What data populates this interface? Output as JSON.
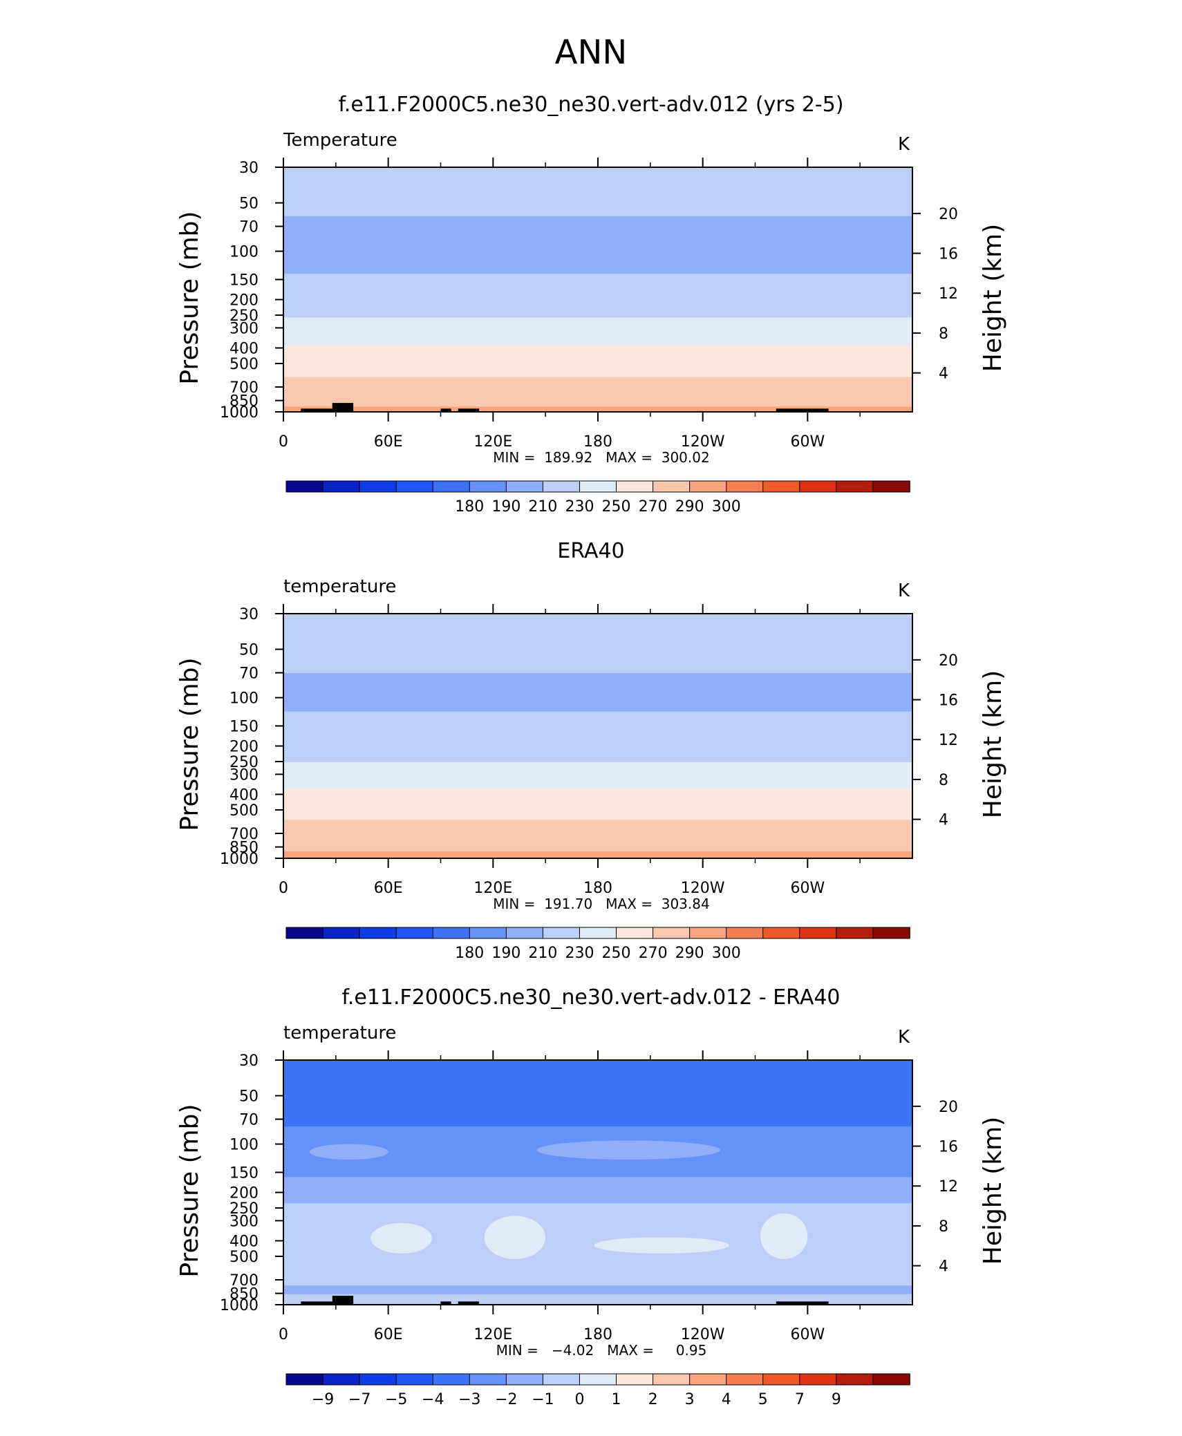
{
  "page_title": "ANN",
  "chart_data": [
    {
      "type": "heatmap",
      "title": "f.e11.F2000C5.ne30_ne30.vert-adv.012 (yrs 2-5)",
      "left_label": "Temperature",
      "units": "K",
      "ylabel": "Pressure (mb)",
      "y2label": "Height (km)",
      "xlabel": "",
      "x_ticks": [
        "0",
        "60E",
        "120E",
        "180",
        "120W",
        "60W"
      ],
      "y_ticks": [
        "30",
        "50",
        "70",
        "100",
        "150",
        "200",
        "250",
        "300",
        "400",
        "500",
        "700",
        "850",
        "1000"
      ],
      "y2_ticks": [
        "20",
        "16",
        "12",
        "8",
        "4"
      ],
      "y_scale": "log",
      "ylim": [
        1000,
        30
      ],
      "xlim": [
        0,
        360
      ],
      "min_max_text": "MIN =  189.92   MAX =  300.02",
      "min": 189.92,
      "max": 300.02,
      "colorbar": {
        "labels": [
          "180",
          "190",
          "210",
          "230",
          "250",
          "270",
          "290",
          "300"
        ],
        "colors": [
          "#08088c",
          "#0a24c8",
          "#0f3de6",
          "#1f56f5",
          "#3e72f7",
          "#6492f9",
          "#8fb0f9",
          "#bcd0f7",
          "#e1ebf8",
          "#fde9dc",
          "#fac8ae",
          "#f7a47f",
          "#f47e52",
          "#ef5a2b",
          "#de3414",
          "#b51d0c",
          "#8a0a06"
        ]
      },
      "profile": [
        {
          "p": 30,
          "value": 224
        },
        {
          "p": 40,
          "value": 219
        },
        {
          "p": 50,
          "value": 215
        },
        {
          "p": 70,
          "value": 206
        },
        {
          "p": 100,
          "value": 203
        },
        {
          "p": 150,
          "value": 212
        },
        {
          "p": 200,
          "value": 219
        },
        {
          "p": 250,
          "value": 228
        },
        {
          "p": 300,
          "value": 238
        },
        {
          "p": 400,
          "value": 252
        },
        {
          "p": 500,
          "value": 262
        },
        {
          "p": 700,
          "value": 276
        },
        {
          "p": 850,
          "value": 285
        },
        {
          "p": 1000,
          "value": 294
        }
      ]
    },
    {
      "type": "heatmap",
      "title": "ERA40",
      "left_label": "temperature",
      "units": "K",
      "ylabel": "Pressure (mb)",
      "y2label": "Height (km)",
      "xlabel": "",
      "x_ticks": [
        "0",
        "60E",
        "120E",
        "180",
        "120W",
        "60W"
      ],
      "y_ticks": [
        "30",
        "50",
        "70",
        "100",
        "150",
        "200",
        "250",
        "300",
        "400",
        "500",
        "700",
        "850",
        "1000"
      ],
      "y2_ticks": [
        "20",
        "16",
        "12",
        "8",
        "4"
      ],
      "y_scale": "log",
      "ylim": [
        1000,
        30
      ],
      "xlim": [
        0,
        360
      ],
      "min_max_text": "MIN =  191.70   MAX =  303.84",
      "min": 191.7,
      "max": 303.84,
      "colorbar": {
        "labels": [
          "180",
          "190",
          "210",
          "230",
          "250",
          "270",
          "290",
          "300"
        ],
        "colors": [
          "#08088c",
          "#0a24c8",
          "#0f3de6",
          "#1f56f5",
          "#3e72f7",
          "#6492f9",
          "#8fb0f9",
          "#bcd0f7",
          "#e1ebf8",
          "#fde9dc",
          "#fac8ae",
          "#f7a47f",
          "#f47e52",
          "#ef5a2b",
          "#de3414",
          "#b51d0c",
          "#8a0a06"
        ]
      },
      "profile": [
        {
          "p": 30,
          "value": 226
        },
        {
          "p": 40,
          "value": 222
        },
        {
          "p": 50,
          "value": 217
        },
        {
          "p": 70,
          "value": 210
        },
        {
          "p": 100,
          "value": 206
        },
        {
          "p": 150,
          "value": 214
        },
        {
          "p": 200,
          "value": 221
        },
        {
          "p": 250,
          "value": 230
        },
        {
          "p": 300,
          "value": 241
        },
        {
          "p": 400,
          "value": 254
        },
        {
          "p": 500,
          "value": 264
        },
        {
          "p": 700,
          "value": 278
        },
        {
          "p": 850,
          "value": 287
        },
        {
          "p": 1000,
          "value": 296
        }
      ]
    },
    {
      "type": "heatmap",
      "title": "f.e11.F2000C5.ne30_ne30.vert-adv.012 - ERA40",
      "left_label": "temperature",
      "units": "K",
      "ylabel": "Pressure (mb)",
      "y2label": "Height (km)",
      "xlabel": "",
      "x_ticks": [
        "0",
        "60E",
        "120E",
        "180",
        "120W",
        "60W"
      ],
      "y_ticks": [
        "30",
        "50",
        "70",
        "100",
        "150",
        "200",
        "250",
        "300",
        "400",
        "500",
        "700",
        "850",
        "1000"
      ],
      "y2_ticks": [
        "20",
        "16",
        "12",
        "8",
        "4"
      ],
      "y_scale": "log",
      "ylim": [
        1000,
        30
      ],
      "xlim": [
        0,
        360
      ],
      "min_max_text": "MIN =   −4.02   MAX =     0.95",
      "min": -4.02,
      "max": 0.95,
      "colorbar": {
        "labels": [
          "−9",
          "−7",
          "−5",
          "−4",
          "−3",
          "−2",
          "−1",
          "0",
          "1",
          "2",
          "3",
          "4",
          "5",
          "7",
          "9"
        ],
        "colors": [
          "#08088c",
          "#0a24c8",
          "#0f3de6",
          "#1f56f5",
          "#3e72f7",
          "#6492f9",
          "#8fb0f9",
          "#bcd0f7",
          "#e1ebf8",
          "#fde9dc",
          "#fac8ae",
          "#f7a47f",
          "#f47e52",
          "#ef5a2b",
          "#de3414",
          "#b51d0c",
          "#8a0a06"
        ]
      },
      "profile": [
        {
          "p": 30,
          "value": -3.5
        },
        {
          "p": 70,
          "value": -3.5
        },
        {
          "p": 85,
          "value": -2.5
        },
        {
          "p": 130,
          "value": -2.5
        },
        {
          "p": 200,
          "value": -1.5
        },
        {
          "p": 270,
          "value": -0.5
        },
        {
          "p": 700,
          "value": -0.5
        },
        {
          "p": 820,
          "value": -1.5
        },
        {
          "p": 900,
          "value": -0.5
        },
        {
          "p": 1000,
          "value": -0.5
        }
      ],
      "features": [
        {
          "kind": "positive",
          "value": 0.5,
          "lon": [
            50,
            85
          ],
          "p": [
            310,
            480
          ]
        },
        {
          "kind": "positive",
          "value": 0.5,
          "lon": [
            115,
            150
          ],
          "p": [
            280,
            520
          ]
        },
        {
          "kind": "positive",
          "value": 0.5,
          "lon": [
            178,
            255
          ],
          "p": [
            380,
            480
          ]
        },
        {
          "kind": "positive",
          "value": 0.5,
          "lon": [
            273,
            300
          ],
          "p": [
            270,
            520
          ]
        },
        {
          "kind": "weak-negative",
          "value": -1.5,
          "lon": [
            15,
            60
          ],
          "p": [
            100,
            125
          ]
        },
        {
          "kind": "weak-negative",
          "value": -1.5,
          "lon": [
            145,
            250
          ],
          "p": [
            95,
            125
          ]
        }
      ]
    }
  ]
}
